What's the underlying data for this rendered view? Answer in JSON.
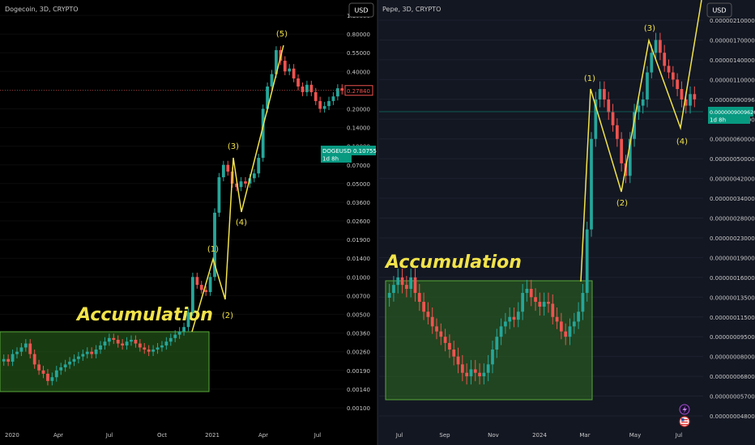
{
  "colors": {
    "up": "#26a69a",
    "down": "#ef5350",
    "wave": "#f2e34a",
    "accum_fill": "#2e6b1f",
    "accum_stroke": "#58a83a",
    "axis_text": "#c8c8c8",
    "left_bg": "#000000",
    "right_bg": "#131722",
    "grid": "#2a2e39"
  },
  "chart_data": [
    {
      "type": "line",
      "symbol_title": "Dogecoin, 3D, CRYPTO",
      "currency_button": "USD",
      "scale": "log",
      "ylim": [
        0.00085,
        1.3
      ],
      "y_ticks": [
        "1.10000",
        "0.80000",
        "0.55000",
        "0.40000",
        "0.28000",
        "0.20000",
        "0.14000",
        "0.10000",
        "0.07000",
        "0.05000",
        "0.03600",
        "0.02600",
        "0.01900",
        "0.01400",
        "0.01000",
        "0.00700",
        "0.00500",
        "0.00360",
        "0.00260",
        "0.00190",
        "0.00140",
        "0.00100"
      ],
      "x_ticks": [
        "2020",
        "Apr",
        "Jul",
        "Oct",
        "2021",
        "Apr",
        "Jul"
      ],
      "price_labels": [
        {
          "text": "0.27840",
          "value": 0.2784,
          "style": "outline-red"
        },
        {
          "text": "DOGEUSD",
          "value": 0.10755,
          "style": "green"
        },
        {
          "text": "0.10755",
          "value": 0.10755,
          "style": "green"
        },
        {
          "text": "1d 8h",
          "value": 0.10755,
          "style": "green-small"
        }
      ],
      "accumulation": {
        "label": "Accumulation",
        "x_range": [
          "2020-01",
          "2021-01"
        ],
        "price_range": [
          0.00148,
          0.0045
        ]
      },
      "candles_close": [
        0.0023,
        0.0022,
        0.0025,
        0.0026,
        0.0028,
        0.003,
        0.0025,
        0.0021,
        0.0019,
        0.0018,
        0.0016,
        0.0017,
        0.0019,
        0.002,
        0.0021,
        0.0022,
        0.0023,
        0.0024,
        0.0025,
        0.0026,
        0.0025,
        0.0027,
        0.0029,
        0.0031,
        0.0033,
        0.0032,
        0.003,
        0.0029,
        0.0031,
        0.0032,
        0.003,
        0.0028,
        0.0027,
        0.0026,
        0.0027,
        0.0028,
        0.0029,
        0.0031,
        0.0033,
        0.0035,
        0.0037,
        0.004,
        0.0052,
        0.01,
        0.0086,
        0.0078,
        0.0075,
        0.01,
        0.03,
        0.056,
        0.07,
        0.062,
        0.05,
        0.047,
        0.052,
        0.05,
        0.055,
        0.06,
        0.08,
        0.2,
        0.3,
        0.38,
        0.58,
        0.48,
        0.4,
        0.42,
        0.35,
        0.3,
        0.27,
        0.31,
        0.27,
        0.23,
        0.2,
        0.21,
        0.23,
        0.25,
        0.29,
        0.2784
      ],
      "waves": [
        {
          "label": "(1)",
          "date": "2021-01",
          "price": 0.015
        },
        {
          "label": "(2)",
          "date": "2021-01",
          "price": 0.0071
        },
        {
          "label": "(3)",
          "date": "2021-02",
          "price": 0.075
        },
        {
          "label": "(4)",
          "date": "2021-03",
          "price": 0.035
        },
        {
          "label": "(5)",
          "date": "2021-05",
          "price": 0.66
        }
      ]
    },
    {
      "type": "line",
      "symbol_title": "Pepe, 3D, CRYPTO",
      "currency_button": "USD",
      "scale": "log",
      "ylim": [
        4.5e-07,
        2.5e-06
      ],
      "y_ticks": [
        "0.0000021000000",
        "0.0000017000000",
        "0.0000014000000",
        "0.0000011000000",
        "0.0000009009626",
        "0.0000007500000",
        "0.0000006000000",
        "0.0000005000000",
        "0.0000004200000",
        "0.0000003400000",
        "0.0000002800000",
        "0.0000002300000",
        "0.0000001900000",
        "0.0000001600000",
        "0.0000001350000",
        "0.0000001150000",
        "0.0000000950000",
        "0.0000000800000",
        "0.0000000680000",
        "0.0000000570000",
        "0.0000000480000"
      ],
      "x_ticks": [
        "Jul",
        "Sep",
        "Nov",
        "2024",
        "Mar",
        "May",
        "Jul"
      ],
      "price_labels": [
        {
          "text": "0.0000009009626",
          "value": 9.009626e-07,
          "style": "green"
        },
        {
          "text": "1d 8h",
          "value": 9.009626e-07,
          "style": "green-small"
        }
      ],
      "accumulation": {
        "label": "Accumulation",
        "x_range": [
          "2023-06",
          "2024-02"
        ],
        "price_range": [
          5.8e-10,
          1.82e-09
        ]
      },
      "candles_close": [
        1.4e-07,
        1.5e-07,
        1.6e-07,
        1.5e-07,
        1.45e-07,
        1.6e-07,
        1.4e-07,
        1.3e-07,
        1.2e-07,
        1.15e-07,
        1.05e-07,
        1e-07,
        9.5e-08,
        9e-08,
        8.5e-08,
        8e-08,
        7.5e-08,
        7e-08,
        6.8e-08,
        7.2e-08,
        7e-08,
        6.8e-08,
        7e-08,
        7.5e-08,
        8.5e-08,
        9.5e-08,
        1.05e-07,
        1.1e-07,
        1.15e-07,
        1.12e-07,
        1.2e-07,
        1.4e-07,
        1.45e-07,
        1.35e-07,
        1.3e-07,
        1.25e-07,
        1.3e-07,
        1.28e-07,
        1.15e-07,
        1.1e-07,
        1e-07,
        9.5e-08,
        1.05e-07,
        1.1e-07,
        1.2e-07,
        1.4e-07,
        2.5e-07,
        6e-07,
        9e-07,
        1e-06,
        9e-07,
        8e-07,
        7e-07,
        6e-07,
        4.8e-07,
        4.3e-07,
        6e-07,
        8e-07,
        8.5e-07,
        9e-07,
        1.2e-06,
        1.5e-06,
        1.7e-06,
        1.5e-06,
        1.3e-06,
        1.2e-06,
        1.1e-06,
        1e-06,
        9e-07,
        8.5e-07,
        9.5e-07,
        9.01e-07
      ],
      "waves": [
        {
          "label": "(1)",
          "date": "2024-03",
          "price": 1.08e-06
        },
        {
          "label": "(2)",
          "date": "2024-04",
          "price": 4.2e-07
        },
        {
          "label": "(3)",
          "date": "2024-05",
          "price": 1.76e-06
        },
        {
          "label": "(4)",
          "date": "2024-07",
          "price": 7.6e-07
        }
      ]
    }
  ]
}
